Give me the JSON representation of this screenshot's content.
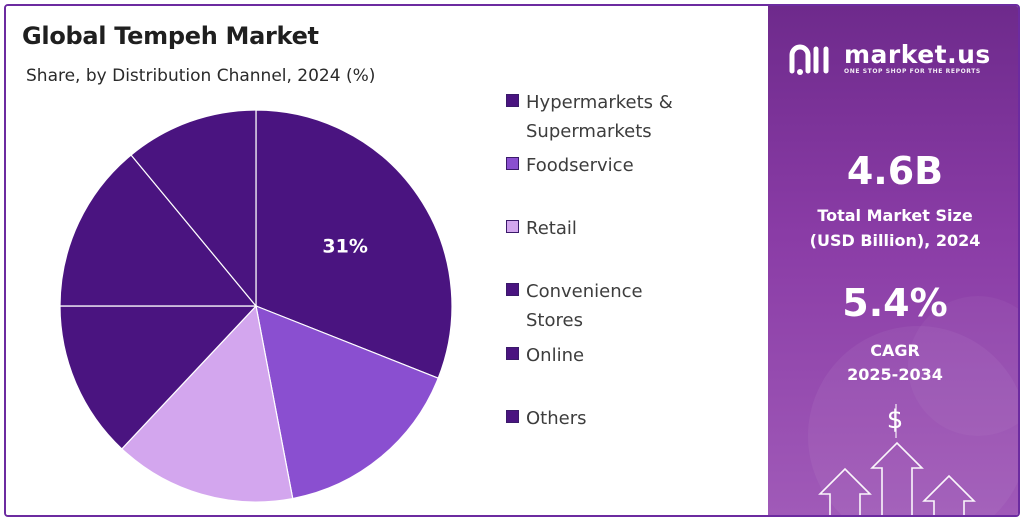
{
  "header": {
    "title": "Global Tempeh Market",
    "subtitle": "Share, by Distribution Channel, 2024 (%)"
  },
  "chart_data": {
    "type": "pie",
    "title": "Global Tempeh Market",
    "subtitle": "Share, by Distribution Channel, 2024 (%)",
    "categories": [
      "Hypermarkets & Supermarkets",
      "Foodservice",
      "Retail",
      "Convenience Stores",
      "Online",
      "Others"
    ],
    "values": [
      31,
      16,
      15,
      13,
      14,
      11
    ],
    "colors": [
      "#4a1480",
      "#8a4fd0",
      "#d3a6ee",
      "#4a1480",
      "#4a1480",
      "#4a1480"
    ],
    "data_labels": [
      "31%",
      "",
      "",
      "",
      "",
      ""
    ],
    "start_angle_deg": 0,
    "direction": "clockwise",
    "legend_position": "right"
  },
  "legend": {
    "items": [
      {
        "label_line1": "Hypermarkets &",
        "label_line2": "Supermarkets",
        "color": "#4a1480"
      },
      {
        "label_line1": "Foodservice",
        "label_line2": "",
        "color": "#8a4fd0"
      },
      {
        "label_line1": "Retail",
        "label_line2": "",
        "color": "#d3a6ee"
      },
      {
        "label_line1": "Convenience",
        "label_line2": "Stores",
        "color": "#4a1480"
      },
      {
        "label_line1": "Online",
        "label_line2": "",
        "color": "#4a1480"
      },
      {
        "label_line1": "Others",
        "label_line2": "",
        "color": "#4a1480"
      }
    ]
  },
  "sidebar": {
    "brand": "market.us",
    "tagline": "ONE STOP SHOP FOR THE REPORTS",
    "market_size_value": "4.6B",
    "market_size_label_1": "Total Market Size",
    "market_size_label_2": "(USD Billion), 2024",
    "cagr_value": "5.4%",
    "cagr_label_1": "CAGR",
    "cagr_label_2": "2025-2034",
    "dollar_symbol": "$",
    "logo_icon": "market-us-logo-icon",
    "decoration_icons": [
      "dollar-icon",
      "growth-arrows-icon"
    ]
  },
  "colors": {
    "accent": "#6c2ba0",
    "sidebar_top": "#6e2a8c",
    "sidebar_bottom": "#a05ab8"
  }
}
